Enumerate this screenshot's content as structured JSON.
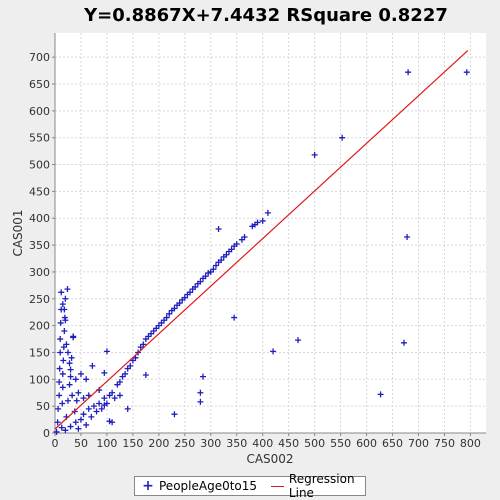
{
  "chart_data": {
    "type": "scatter",
    "title": "Y=0.8867X+7.4432    RSquare 0.8227",
    "xlabel": "CAS002",
    "ylabel": "CAS001",
    "xlim": [
      0,
      830
    ],
    "ylim": [
      0,
      745
    ],
    "xticks": [
      0,
      50,
      100,
      150,
      200,
      250,
      300,
      350,
      400,
      450,
      500,
      550,
      600,
      650,
      700,
      750,
      800
    ],
    "yticks": [
      0,
      50,
      100,
      150,
      200,
      250,
      300,
      350,
      400,
      450,
      500,
      550,
      600,
      650,
      700
    ],
    "grid": true,
    "legend_position": "bottom",
    "series": [
      {
        "name": "PeopleAge0to15",
        "color": "#1f1fbf",
        "marker": "plus",
        "points": [
          [
            3,
            2
          ],
          [
            5,
            20
          ],
          [
            6,
            45
          ],
          [
            8,
            70
          ],
          [
            8,
            95
          ],
          [
            9,
            120
          ],
          [
            10,
            150
          ],
          [
            10,
            175
          ],
          [
            11,
            205
          ],
          [
            12,
            230
          ],
          [
            12,
            262
          ],
          [
            13,
            10
          ],
          [
            14,
            55
          ],
          [
            15,
            85
          ],
          [
            15,
            110
          ],
          [
            16,
            135
          ],
          [
            17,
            160
          ],
          [
            18,
            190
          ],
          [
            19,
            215
          ],
          [
            20,
            250
          ],
          [
            24,
            268
          ],
          [
            22,
            30
          ],
          [
            25,
            60
          ],
          [
            28,
            90
          ],
          [
            30,
            118
          ],
          [
            32,
            140
          ],
          [
            35,
            178
          ],
          [
            20,
            5
          ],
          [
            30,
            12
          ],
          [
            40,
            20
          ],
          [
            45,
            8
          ],
          [
            50,
            25
          ],
          [
            55,
            35
          ],
          [
            60,
            15
          ],
          [
            65,
            45
          ],
          [
            70,
            30
          ],
          [
            75,
            50
          ],
          [
            80,
            40
          ],
          [
            85,
            55
          ],
          [
            90,
            45
          ],
          [
            95,
            65
          ],
          [
            100,
            55
          ],
          [
            105,
            70
          ],
          [
            110,
            75
          ],
          [
            115,
            65
          ],
          [
            120,
            90
          ],
          [
            125,
            95
          ],
          [
            130,
            105
          ],
          [
            135,
            110
          ],
          [
            140,
            120
          ],
          [
            145,
            125
          ],
          [
            150,
            135
          ],
          [
            155,
            140
          ],
          [
            160,
            150
          ],
          [
            165,
            160
          ],
          [
            170,
            165
          ],
          [
            175,
            175
          ],
          [
            180,
            180
          ],
          [
            185,
            185
          ],
          [
            190,
            190
          ],
          [
            195,
            195
          ],
          [
            200,
            200
          ],
          [
            205,
            205
          ],
          [
            210,
            210
          ],
          [
            215,
            215
          ],
          [
            220,
            222
          ],
          [
            225,
            228
          ],
          [
            230,
            232
          ],
          [
            235,
            238
          ],
          [
            240,
            242
          ],
          [
            245,
            248
          ],
          [
            250,
            252
          ],
          [
            255,
            258
          ],
          [
            260,
            262
          ],
          [
            265,
            268
          ],
          [
            270,
            272
          ],
          [
            275,
            278
          ],
          [
            280,
            282
          ],
          [
            285,
            288
          ],
          [
            290,
            292
          ],
          [
            295,
            298
          ],
          [
            300,
            300
          ],
          [
            305,
            305
          ],
          [
            310,
            312
          ],
          [
            315,
            318
          ],
          [
            320,
            322
          ],
          [
            325,
            328
          ],
          [
            330,
            332
          ],
          [
            335,
            338
          ],
          [
            340,
            342
          ],
          [
            345,
            348
          ],
          [
            350,
            352
          ],
          [
            360,
            360
          ],
          [
            365,
            365
          ],
          [
            380,
            385
          ],
          [
            385,
            388
          ],
          [
            390,
            392
          ],
          [
            400,
            395
          ],
          [
            410,
            410
          ],
          [
            315,
            380
          ],
          [
            500,
            518
          ],
          [
            553,
            550
          ],
          [
            680,
            672
          ],
          [
            793,
            672
          ],
          [
            678,
            365
          ],
          [
            345,
            215
          ],
          [
            420,
            152
          ],
          [
            468,
            173
          ],
          [
            672,
            168
          ],
          [
            627,
            72
          ],
          [
            285,
            105
          ],
          [
            280,
            75
          ],
          [
            280,
            58
          ],
          [
            230,
            35
          ],
          [
            175,
            108
          ],
          [
            140,
            45
          ],
          [
            125,
            70
          ],
          [
            110,
            20
          ],
          [
            105,
            22
          ],
          [
            100,
            152
          ],
          [
            95,
            112
          ],
          [
            72,
            125
          ],
          [
            40,
            100
          ],
          [
            35,
            180
          ],
          [
            30,
            105
          ],
          [
            25,
            150
          ],
          [
            18,
            230
          ],
          [
            15,
            240
          ],
          [
            20,
            210
          ],
          [
            22,
            165
          ],
          [
            28,
            130
          ],
          [
            45,
            75
          ],
          [
            55,
            65
          ],
          [
            65,
            70
          ],
          [
            85,
            80
          ],
          [
            95,
            52
          ],
          [
            60,
            100
          ],
          [
            50,
            110
          ],
          [
            42,
            60
          ],
          [
            38,
            40
          ],
          [
            33,
            70
          ]
        ]
      }
    ],
    "regression": {
      "name": "Regression Line",
      "color": "#e01818",
      "slope": 0.8867,
      "intercept": 7.4432,
      "x_range": [
        0,
        795
      ]
    }
  }
}
